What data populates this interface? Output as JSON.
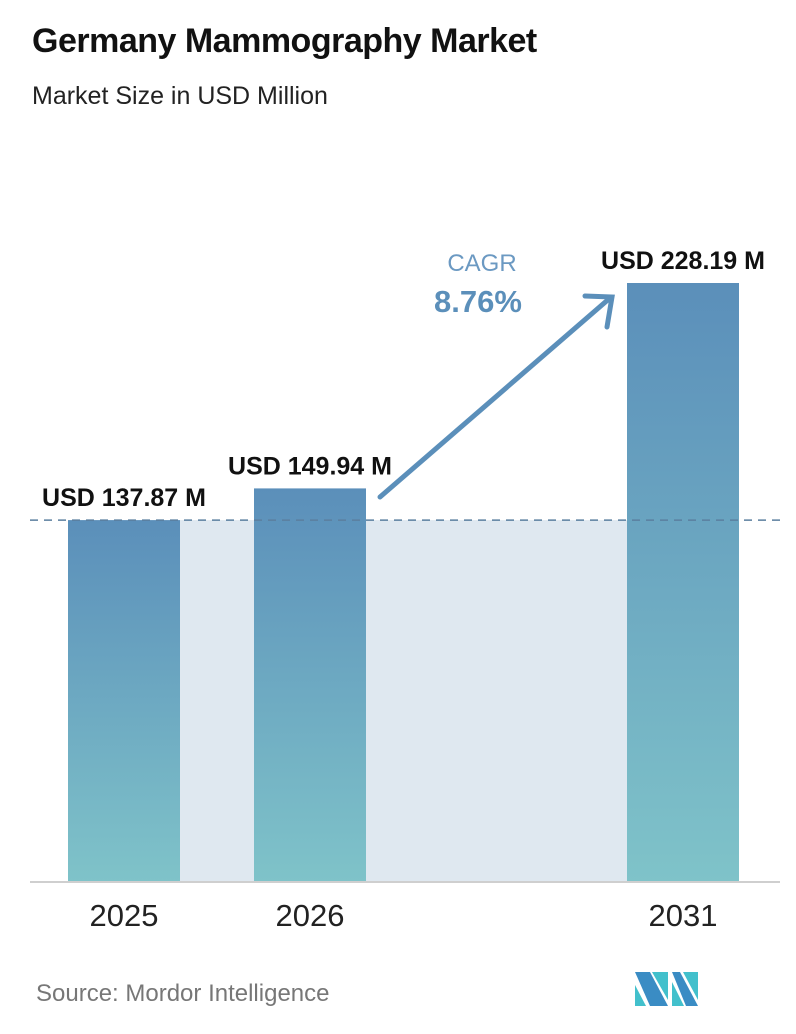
{
  "header": {
    "title": "Germany Mammography Market",
    "subtitle": "Market Size in USD Million"
  },
  "chart_data": {
    "type": "bar",
    "title": "Germany Mammography Market",
    "subtitle": "Market Size in USD Million",
    "categories": [
      "2025",
      "2026",
      "2031"
    ],
    "values": [
      137.87,
      149.94,
      228.19
    ],
    "data_labels": [
      "USD 137.87 M",
      "USD 149.94 M",
      "USD 228.19 M"
    ],
    "ylim": [
      0,
      228.19
    ],
    "grid": false,
    "annotation": {
      "label": "CAGR",
      "value": "8.76%"
    },
    "colors": {
      "bar_top": "#5b8fba",
      "bar_bottom": "#7fc3c9",
      "shade": "#dfe8f0",
      "arrow": "#5b8fba",
      "dash": "#5b7f9f"
    }
  },
  "footer": {
    "source": "Source:  Mordor Intelligence",
    "logo_text": "MI"
  }
}
